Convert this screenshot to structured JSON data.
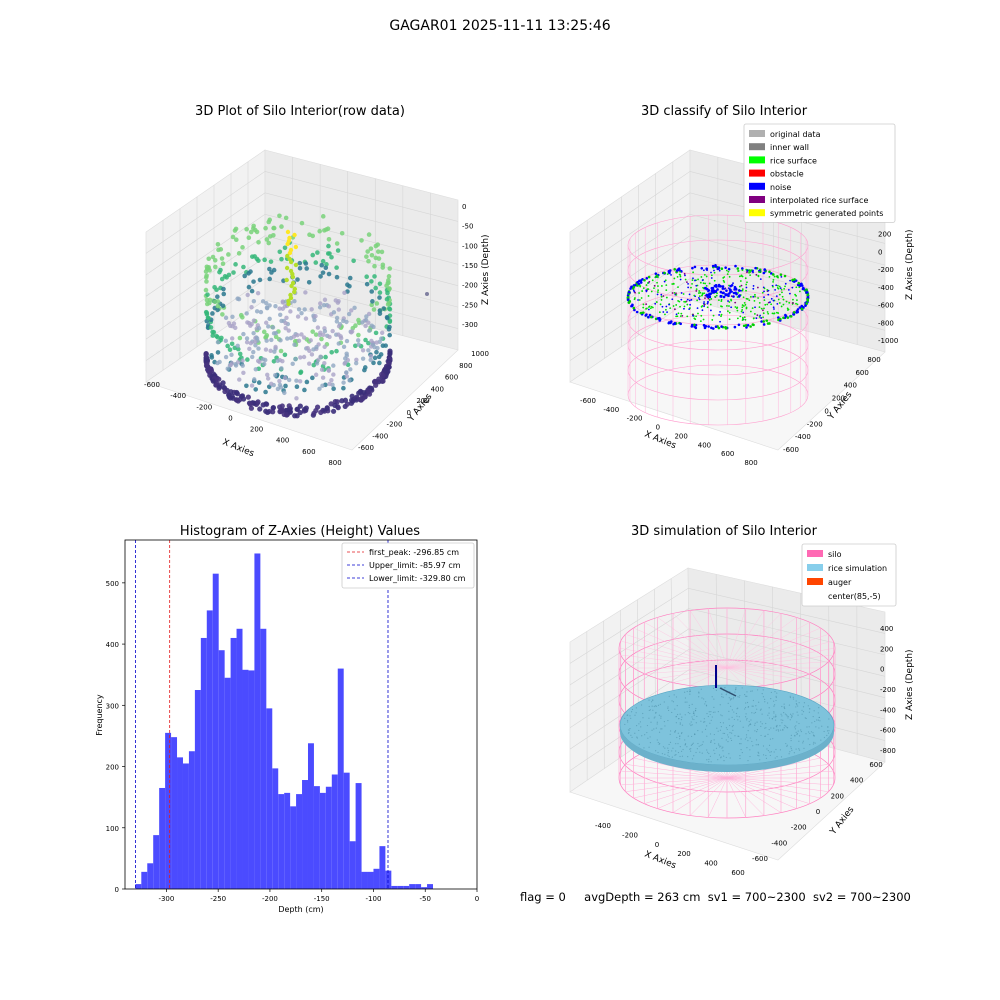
{
  "suptitle": "GAGAR01 2025-11-11 13:25:46",
  "panels": {
    "raw": {
      "title": "3D Plot of Silo Interior(row data)",
      "xlabel": "X Axies",
      "ylabel": "Y Axies",
      "zlabel": "Z Axies (Depth)",
      "xticks": [
        "-600",
        "-400",
        "-200",
        "0",
        "200",
        "400",
        "600",
        "800"
      ],
      "yticks": [
        "-600",
        "-400",
        "-200",
        "0",
        "200",
        "400",
        "600",
        "800",
        "1000"
      ],
      "zticks": [
        "0",
        "-50",
        "-100",
        "-150",
        "-200",
        "-250",
        "-300"
      ]
    },
    "classify": {
      "title": "3D classify of Silo Interior",
      "xlabel": "X Axies",
      "ylabel": "Y Axies",
      "zlabel": "Z Axies (Depth)",
      "xticks": [
        "-600",
        "-400",
        "-200",
        "0",
        "200",
        "400",
        "600",
        "800"
      ],
      "yticks": [
        "-600",
        "-400",
        "-200",
        "0",
        "200",
        "400",
        "600",
        "800"
      ],
      "zticks": [
        "400",
        "200",
        "0",
        "-200",
        "-400",
        "-600",
        "-800",
        "-1000"
      ],
      "legend": [
        {
          "label": "original data",
          "color": "#b0b0b0"
        },
        {
          "label": "inner wall",
          "color": "#808080"
        },
        {
          "label": "rice surface",
          "color": "#00ff00"
        },
        {
          "label": "obstacle",
          "color": "#ff0000"
        },
        {
          "label": "noise",
          "color": "#0000ff"
        },
        {
          "label": "interpolated rice surface",
          "color": "#800080"
        },
        {
          "label": "symmetric generated points",
          "color": "#ffff00"
        }
      ]
    },
    "simulation": {
      "title": "3D simulation of Silo Interior",
      "xlabel": "X Axies",
      "ylabel": "Y Axies",
      "zlabel": "Z Axies (Depth)",
      "xticks": [
        "-400",
        "-200",
        "0",
        "200",
        "400",
        "600"
      ],
      "yticks": [
        "-600",
        "-400",
        "-200",
        "0",
        "200",
        "400",
        "600"
      ],
      "zticks": [
        "400",
        "200",
        "0",
        "-200",
        "-400",
        "-600",
        "-800"
      ],
      "legend": [
        {
          "label": "silo",
          "color": "#ff69b4"
        },
        {
          "label": "rice simulation",
          "color": "#87ceeb"
        },
        {
          "label": "auger",
          "color": "#ff4500"
        },
        {
          "label": "center(85,-5)",
          "color": ""
        }
      ]
    }
  },
  "footer": {
    "flag": "flag = 0",
    "avg": "avgDepth = 263 cm",
    "sv1": "sv1 = 700~2300",
    "sv2": "sv2 = 700~2300"
  },
  "chart_data": {
    "type": "bar",
    "title": "Histogram of Z-Axies (Height) Values",
    "xlabel": "Depth (cm)",
    "ylabel": "Frequency",
    "xlim": [
      -340,
      0
    ],
    "ylim": [
      0,
      570
    ],
    "xticks": [
      -300,
      -250,
      -200,
      -150,
      -100,
      -50,
      0
    ],
    "yticks": [
      0,
      100,
      200,
      300,
      400,
      500
    ],
    "bar_color": "#4b4bff",
    "bin_start": -330,
    "bin_width": 5.75,
    "values": [
      8,
      28,
      42,
      88,
      165,
      255,
      248,
      215,
      205,
      225,
      325,
      410,
      455,
      515,
      390,
      345,
      410,
      425,
      358,
      357,
      548,
      425,
      295,
      197,
      155,
      157,
      135,
      155,
      178,
      238,
      168,
      157,
      167,
      187,
      360,
      190,
      78,
      173,
      28,
      28,
      33,
      70,
      30,
      5,
      5,
      5,
      8,
      8,
      3,
      8
    ],
    "vlines": [
      {
        "label": "first_peak: -296.85 cm",
        "x": -296.85,
        "color": "#e41a1c"
      },
      {
        "label": "Upper_limit: -85.97 cm",
        "x": -85.97,
        "color": "#0000cc"
      },
      {
        "label": "Lower_limit: -329.80 cm",
        "x": -329.8,
        "color": "#0000cc"
      }
    ]
  }
}
